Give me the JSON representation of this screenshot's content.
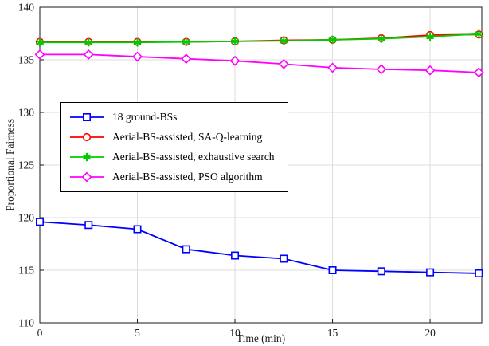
{
  "chart_data": {
    "type": "line",
    "title": "",
    "xlabel": "Time (min)",
    "ylabel": "Proportional Fairness",
    "xlim": [
      0,
      22.65
    ],
    "ylim": [
      110,
      140
    ],
    "xticks": [
      0,
      5,
      10,
      15,
      20
    ],
    "yticks": [
      110,
      115,
      120,
      125,
      130,
      135,
      140
    ],
    "grid": true,
    "legend_position": "upper-left-inside",
    "axis_color": "#1a1a1a",
    "grid_color": "#dcdcdc",
    "x": [
      0,
      2.5,
      5,
      7.5,
      10,
      12.5,
      15,
      17.5,
      20,
      22.5
    ],
    "series": [
      {
        "name": "18 ground-BSs",
        "color": "#0000ff",
        "marker": "square",
        "values": [
          119.6,
          119.3,
          118.9,
          117.0,
          116.4,
          116.1,
          115.0,
          114.9,
          114.8,
          114.7
        ]
      },
      {
        "name": "Aerial-BS-assisted, SA-Q-learning",
        "color": "#ff0000",
        "marker": "circle",
        "values": [
          136.7,
          136.7,
          136.7,
          136.7,
          136.75,
          136.85,
          136.9,
          137.05,
          137.35,
          137.4
        ]
      },
      {
        "name": "Aerial-BS-assisted, exhaustive search",
        "color": "#00cc00",
        "marker": "asterisk",
        "values": [
          136.65,
          136.65,
          136.65,
          136.7,
          136.75,
          136.8,
          136.9,
          137.0,
          137.2,
          137.45
        ]
      },
      {
        "name": "Aerial-BS-assisted, PSO algorithm",
        "color": "#ff00ff",
        "marker": "diamond",
        "values": [
          135.5,
          135.5,
          135.3,
          135.1,
          134.9,
          134.6,
          134.25,
          134.1,
          134.0,
          133.8
        ]
      }
    ]
  }
}
